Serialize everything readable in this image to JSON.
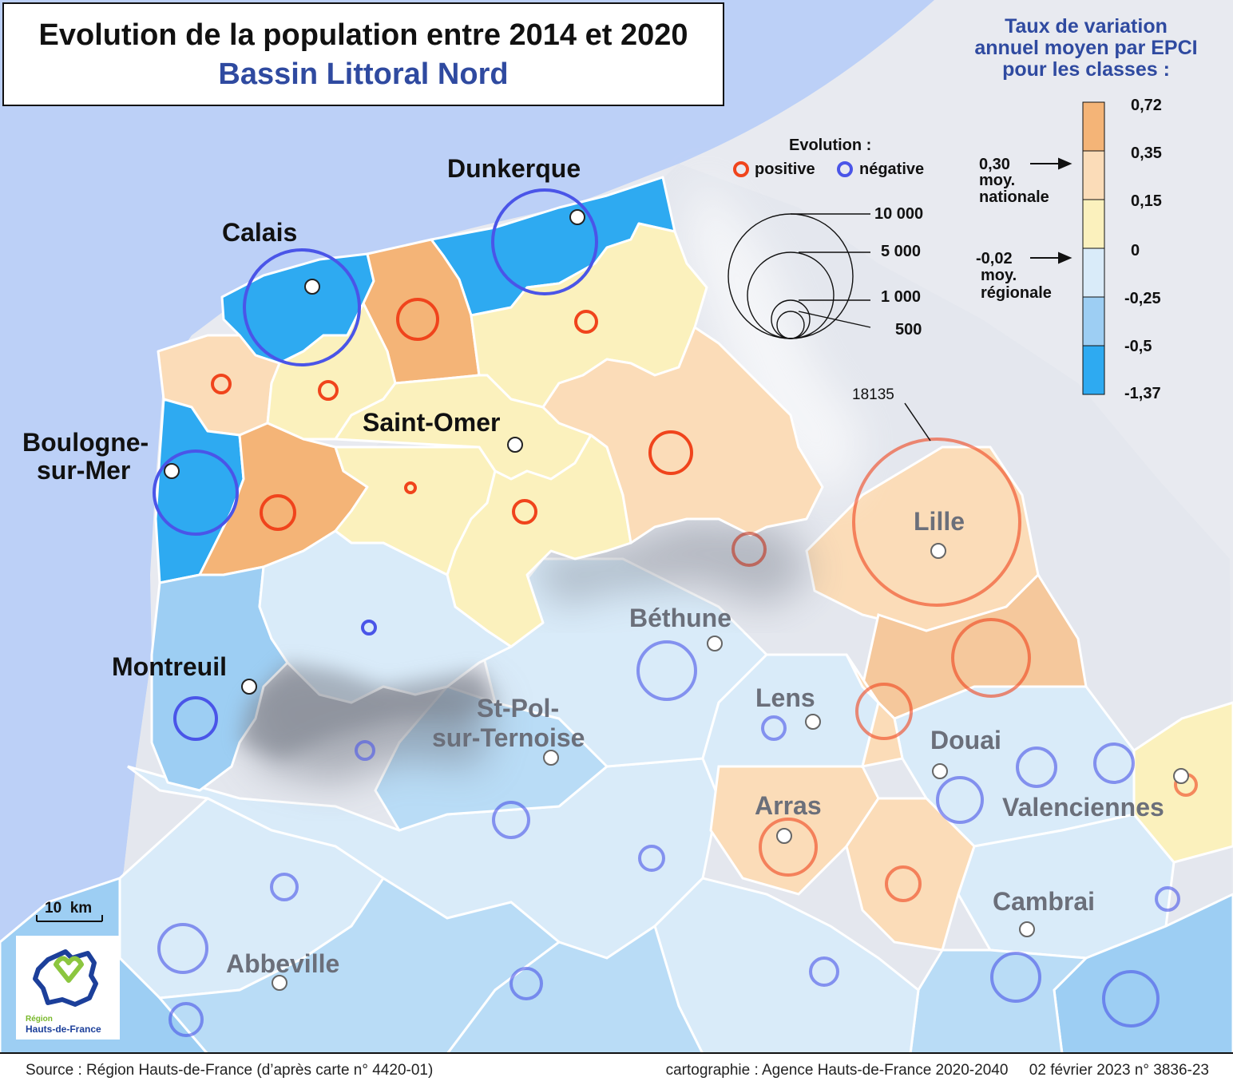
{
  "title": {
    "main": "Evolution de la population entre 2014 et 2020",
    "subtitle": "Bassin Littoral Nord"
  },
  "legend": {
    "title_lines": [
      "Taux de variation",
      "annuel moyen par EPCI",
      "pour les classes :"
    ],
    "class_breaks": [
      "0,72",
      "0,35",
      "0,15",
      "0",
      "-0,25",
      "-0,5",
      "-1,37"
    ],
    "class_colors": [
      "#f4b477",
      "#fbdcb8",
      "#fbf1bd",
      "#d9ebf9",
      "#9dcef3",
      "#2eaaf1"
    ],
    "national_avg": {
      "value": "0,30",
      "label_1": "moy.",
      "label_2": "nationale"
    },
    "regional_avg": {
      "value": "-0,02",
      "label_1": "moy.",
      "label_2": "régionale"
    },
    "evolution_title": "Evolution :",
    "positive_label": "positive",
    "negative_label": "négative",
    "positive_color": "#f0441c",
    "negative_color": "#4a55e8",
    "circle_sizes": [
      "10 000",
      "5 000",
      "1 000",
      "500"
    ],
    "max_value_label": "18135"
  },
  "cities": {
    "dunkerque": "Dunkerque",
    "calais": "Calais",
    "boulogne_1": "Boulogne-",
    "boulogne_2": "sur-Mer",
    "saint_omer": "Saint-Omer",
    "montreuil": "Montreuil",
    "lille": "Lille",
    "bethune": "Béthune",
    "lens": "Lens",
    "stpol_1": "St-Pol-",
    "stpol_2": "sur-Ternoise",
    "douai": "Douai",
    "valenciennes": "Valenciennes",
    "arras": "Arras",
    "cambrai": "Cambrai",
    "abbeville": "Abbeville"
  },
  "scale": "10  km",
  "logo": {
    "line1": "Région",
    "line2": "Hauts-de-France"
  },
  "footer": {
    "source": "Source : Région Hauts-de-France (d’après carte n° 4420-01)",
    "credit": "cartographie : Agence Hauts-de-France 2020-2040     02 février 2023 n° 3836-23"
  }
}
